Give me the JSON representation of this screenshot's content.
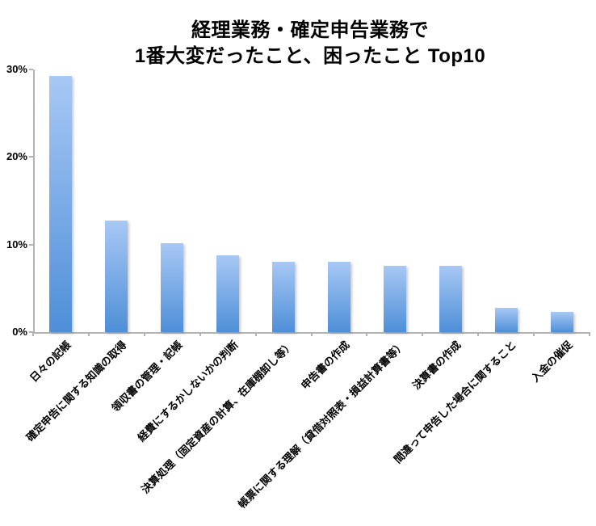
{
  "chart_data": {
    "type": "bar",
    "title_line1": "経理業務・確定申告業務で",
    "title_line2": "1番大変だったこと、困ったこと Top10",
    "categories": [
      "日々の記帳",
      "確定申告に関する知識の取得",
      "領収書の管理・記帳",
      "経費にするかしないかの判断",
      "決算処理（固定資産の計算、在庫棚卸し等）",
      "申告書の作成",
      "帳票に関する理解（貸借対照表・損益計算書等）",
      "決算書の作成",
      "間違って申告した場合に関すること",
      "入金の催促"
    ],
    "values": [
      29.3,
      12.7,
      10.2,
      8.8,
      8.0,
      8.0,
      7.6,
      7.6,
      2.8,
      2.3
    ],
    "unit": "%",
    "xlabel": "",
    "ylabel": "",
    "ylim": [
      0,
      30
    ],
    "yticks": [
      {
        "value": 0,
        "label": "0%"
      },
      {
        "value": 10,
        "label": "10%"
      },
      {
        "value": 20,
        "label": "20%"
      },
      {
        "value": 30,
        "label": "30%"
      }
    ],
    "grid": false,
    "legend": null,
    "colors": {
      "bar_gradient_top": "#a8c8f5",
      "bar_gradient_bottom": "#4e8fd8",
      "axis": "#b3b3b3",
      "text": "#000000",
      "background": "#ffffff"
    }
  }
}
